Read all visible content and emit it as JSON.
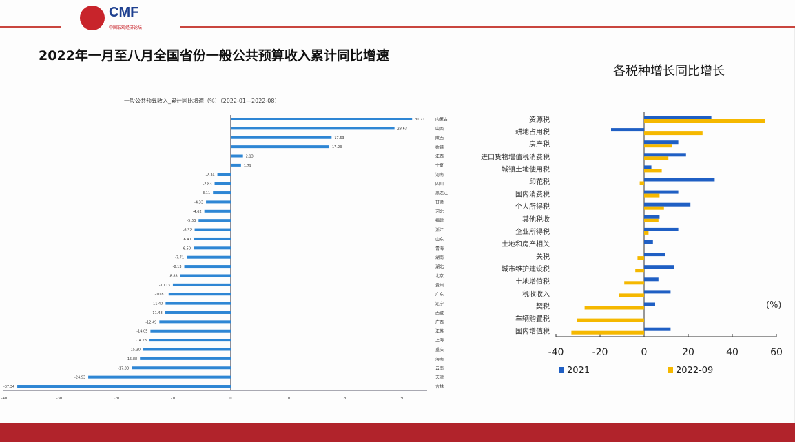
{
  "logo": {
    "brand": "CMF",
    "subtitle": "中国宏观经济论坛"
  },
  "title": "2022年一月至八月全国省份一般公共预算收入累计同比增速",
  "colors": {
    "bar": "#2e86d4",
    "series2021": "#1f5fc4",
    "series2022": "#f5b800",
    "accent": "#b1232b"
  },
  "chart_data": [
    {
      "type": "bar",
      "orientation": "horizontal",
      "title": "一般公共预算收入_累计同比增速（%）（2022-01—2022-08）",
      "xlim": [
        -40,
        40
      ],
      "xticks": [
        "-40",
        "-30",
        "-20",
        "-10",
        "0",
        "10",
        "20",
        "30"
      ],
      "categories": [
        "内蒙古",
        "山西",
        "陕西",
        "新疆",
        "江西",
        "宁夏",
        "河南",
        "四川",
        "黑龙江",
        "甘肃",
        "河北",
        "福建",
        "浙江",
        "山东",
        "青海",
        "湖南",
        "湖北",
        "北京",
        "贵州",
        "广东",
        "辽宁",
        "西藏",
        "广西",
        "江苏",
        "上海",
        "重庆",
        "海南",
        "云南",
        "天津",
        "吉林"
      ],
      "values": [
        31.71,
        28.63,
        17.63,
        17.23,
        2.13,
        1.79,
        -2.34,
        -2.83,
        -3.11,
        -4.33,
        -4.62,
        -5.63,
        -6.32,
        -6.41,
        -6.5,
        -7.71,
        -8.13,
        -8.83,
        -10.13,
        -10.87,
        -11.4,
        -11.48,
        -12.49,
        -14.05,
        -14.23,
        -15.3,
        -15.88,
        -17.33,
        -24.93,
        -37.34
      ],
      "labels": [
        "31.71",
        "28.63",
        "17.63",
        "17.23",
        "2.13",
        "1.79",
        "-2.34",
        "-2.83",
        "-3.11",
        "-4.33",
        "-4.62",
        "-5.63",
        "-6.32",
        "-6.41",
        "-6.50",
        "-7.71",
        "-8.13",
        "-8.83",
        "-10.13",
        "-10.87",
        "-11.40",
        "-11.48",
        "-12.49",
        "-14.05",
        "-14.23",
        "-15.30",
        "-15.88",
        "-17.33",
        "-24.93",
        "-37.34"
      ]
    },
    {
      "type": "bar",
      "orientation": "horizontal",
      "title": "各税种增长同比增长",
      "unit": "(%)",
      "xlim": [
        -40,
        60
      ],
      "xticks": [
        "-40",
        "-20",
        "0",
        "20",
        "40",
        "60"
      ],
      "categories": [
        "资源税",
        "耕地占用税",
        "房产税",
        "进口货物增值税消费税",
        "城镇土地使用税",
        "印花税",
        "国内消费税",
        "个人所得税",
        "其他税收",
        "企业所得税",
        "土地和房产相关",
        "关税",
        "城市维护建设税",
        "土地增值税",
        "税收收入",
        "契税",
        "车辆购置税",
        "国内增值税"
      ],
      "series": [
        {
          "name": "2021",
          "values": [
            30.5,
            -15,
            15.5,
            19,
            3.3,
            32,
            15.5,
            21,
            7,
            15.5,
            4,
            9.5,
            13.5,
            6.5,
            12,
            5,
            0,
            12
          ]
        },
        {
          "name": "2022-09",
          "values": [
            55,
            26.5,
            12.5,
            11,
            8,
            -2,
            7,
            9,
            6.5,
            2,
            0,
            -3,
            -4,
            -9,
            -11.5,
            -27,
            -30.5,
            -33
          ]
        }
      ],
      "legend": "bottom"
    }
  ]
}
